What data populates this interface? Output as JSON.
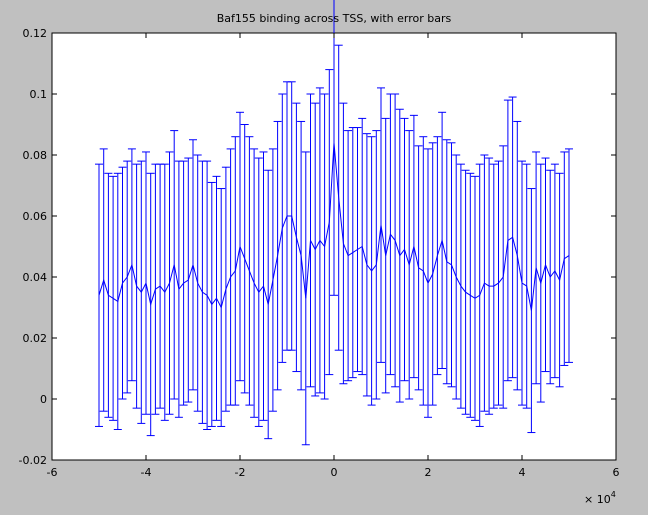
{
  "chart_data": {
    "type": "line",
    "title": "Baf155 binding across TSS, with error bars",
    "xlabel": "",
    "ylabel": "",
    "x_exponent_label": "× 10",
    "x_exponent_power": "4",
    "x_tick_scale": 10000,
    "xlim": [
      -60000,
      60000
    ],
    "ylim": [
      -0.02,
      0.12
    ],
    "x_ticks": [
      -60000,
      -40000,
      -20000,
      0,
      20000,
      40000,
      60000
    ],
    "x_tick_labels": [
      "-6",
      "-4",
      "-2",
      "0",
      "2",
      "4",
      "6"
    ],
    "y_ticks": [
      -0.02,
      0,
      0.02,
      0.04,
      0.06,
      0.08,
      0.1,
      0.12
    ],
    "y_tick_labels": [
      "-0.02",
      "0",
      "0.02",
      "0.04",
      "0.06",
      "0.08",
      "0.1",
      "0.12"
    ],
    "grid": false,
    "background_color": "#c0c0c0",
    "axes_color": "#ffffff",
    "series": [
      {
        "color": "#0000ff",
        "x": [
          -50000,
          -49000,
          -48000,
          -47000,
          -46000,
          -45000,
          -44000,
          -43000,
          -42000,
          -41000,
          -40000,
          -39000,
          -38000,
          -37000,
          -36000,
          -35000,
          -34000,
          -33000,
          -32000,
          -31000,
          -30000,
          -29000,
          -28000,
          -27000,
          -26000,
          -25000,
          -24000,
          -23000,
          -22000,
          -21000,
          -20000,
          -19000,
          -18000,
          -17000,
          -16000,
          -15000,
          -14000,
          -13000,
          -12000,
          -11000,
          -10000,
          -9000,
          -8000,
          -7000,
          -6000,
          -5000,
          -4000,
          -3000,
          -2000,
          -1000,
          0,
          1000,
          2000,
          3000,
          4000,
          5000,
          6000,
          7000,
          8000,
          9000,
          10000,
          11000,
          12000,
          13000,
          14000,
          15000,
          16000,
          17000,
          18000,
          19000,
          20000,
          21000,
          22000,
          23000,
          24000,
          25000,
          26000,
          27000,
          28000,
          29000,
          30000,
          31000,
          32000,
          33000,
          34000,
          35000,
          36000,
          37000,
          38000,
          39000,
          40000,
          41000,
          42000,
          43000,
          44000,
          45000,
          46000,
          47000,
          48000,
          49000,
          50000
        ],
        "y": [
          0.034,
          0.039,
          0.034,
          0.033,
          0.032,
          0.038,
          0.04,
          0.044,
          0.037,
          0.035,
          0.038,
          0.031,
          0.036,
          0.037,
          0.035,
          0.038,
          0.044,
          0.036,
          0.038,
          0.039,
          0.044,
          0.038,
          0.035,
          0.034,
          0.031,
          0.033,
          0.03,
          0.036,
          0.04,
          0.042,
          0.05,
          0.046,
          0.042,
          0.038,
          0.035,
          0.037,
          0.031,
          0.039,
          0.047,
          0.056,
          0.06,
          0.06,
          0.053,
          0.047,
          0.033,
          0.052,
          0.049,
          0.052,
          0.05,
          0.058,
          0.084,
          0.066,
          0.051,
          0.047,
          0.048,
          0.049,
          0.05,
          0.044,
          0.042,
          0.044,
          0.057,
          0.047,
          0.054,
          0.052,
          0.047,
          0.049,
          0.044,
          0.05,
          0.043,
          0.042,
          0.038,
          0.041,
          0.047,
          0.052,
          0.045,
          0.044,
          0.04,
          0.037,
          0.035,
          0.034,
          0.033,
          0.034,
          0.038,
          0.037,
          0.037,
          0.038,
          0.04,
          0.052,
          0.053,
          0.047,
          0.038,
          0.037,
          0.029,
          0.043,
          0.038,
          0.044,
          0.04,
          0.042,
          0.039,
          0.046,
          0.047
        ],
        "err": [
          0.043,
          0.043,
          0.04,
          0.04,
          0.042,
          0.038,
          0.038,
          0.038,
          0.04,
          0.043,
          0.043,
          0.043,
          0.041,
          0.04,
          0.042,
          0.043,
          0.044,
          0.042,
          0.04,
          0.04,
          0.041,
          0.042,
          0.043,
          0.044,
          0.04,
          0.04,
          0.039,
          0.04,
          0.042,
          0.044,
          0.044,
          0.044,
          0.044,
          0.044,
          0.044,
          0.044,
          0.044,
          0.043,
          0.044,
          0.044,
          0.044,
          0.044,
          0.044,
          0.044,
          0.048,
          0.048,
          0.048,
          0.05,
          0.05,
          0.05,
          0.05,
          0.05,
          0.046,
          0.041,
          0.041,
          0.04,
          0.042,
          0.043,
          0.044,
          0.044,
          0.045,
          0.045,
          0.046,
          0.048,
          0.048,
          0.043,
          0.044,
          0.043,
          0.04,
          0.044,
          0.044,
          0.043,
          0.039,
          0.042,
          0.04,
          0.04,
          0.04,
          0.04,
          0.04,
          0.04,
          0.04,
          0.043,
          0.042,
          0.042,
          0.04,
          0.04,
          0.043,
          0.046,
          0.046,
          0.044,
          0.04,
          0.04,
          0.04,
          0.038,
          0.039,
          0.035,
          0.035,
          0.035,
          0.035,
          0.035,
          0.035
        ]
      }
    ]
  }
}
